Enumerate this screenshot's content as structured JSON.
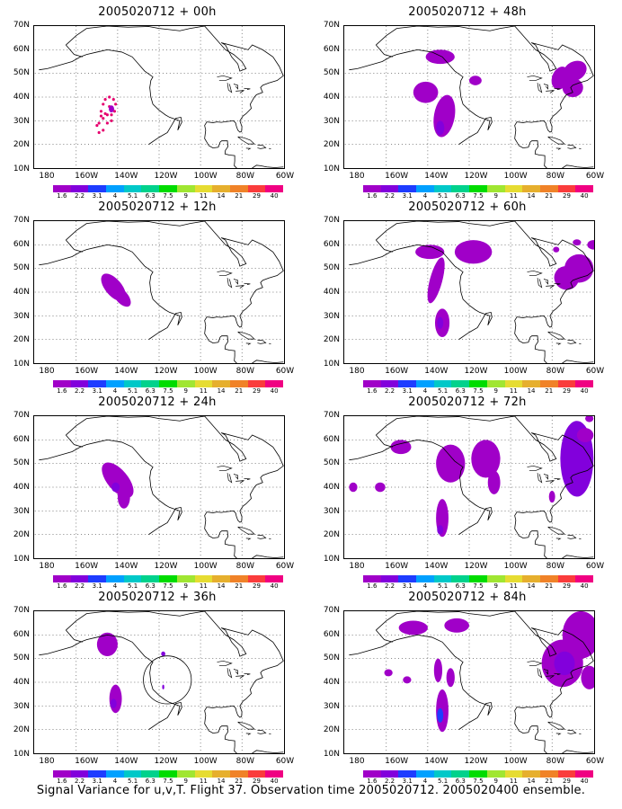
{
  "caption": "Signal Variance for u,v,T. Flight 37. Observation time 2005020712. 2005020400 ensemble.",
  "lat_labels": [
    "70N",
    "60N",
    "50N",
    "40N",
    "30N",
    "20N",
    "10N"
  ],
  "lon_labels": [
    "180",
    "160W",
    "140W",
    "120W",
    "100W",
    "80W",
    "60W"
  ],
  "colorbar": {
    "labels": [
      "1.6",
      "2.2",
      "3.1",
      "4",
      "5.1",
      "6.3",
      "7.5",
      "9",
      "11",
      "14",
      "21",
      "29",
      "40"
    ],
    "colors": [
      "#a000c8",
      "#8200dc",
      "#1e3cff",
      "#00a0ff",
      "#00c8c8",
      "#00d28c",
      "#00dc00",
      "#a0e632",
      "#e6dc32",
      "#e6af2d",
      "#f08228",
      "#fa3c3c",
      "#f00082"
    ]
  },
  "panels": [
    {
      "title": "2005020712 + 00h"
    },
    {
      "title": "2005020712 + 48h"
    },
    {
      "title": "2005020712 + 12h"
    },
    {
      "title": "2005020712 + 60h"
    },
    {
      "title": "2005020712 + 24h"
    },
    {
      "title": "2005020712 + 72h"
    },
    {
      "title": "2005020712 + 36h"
    },
    {
      "title": "2005020712 + 84h"
    }
  ]
}
